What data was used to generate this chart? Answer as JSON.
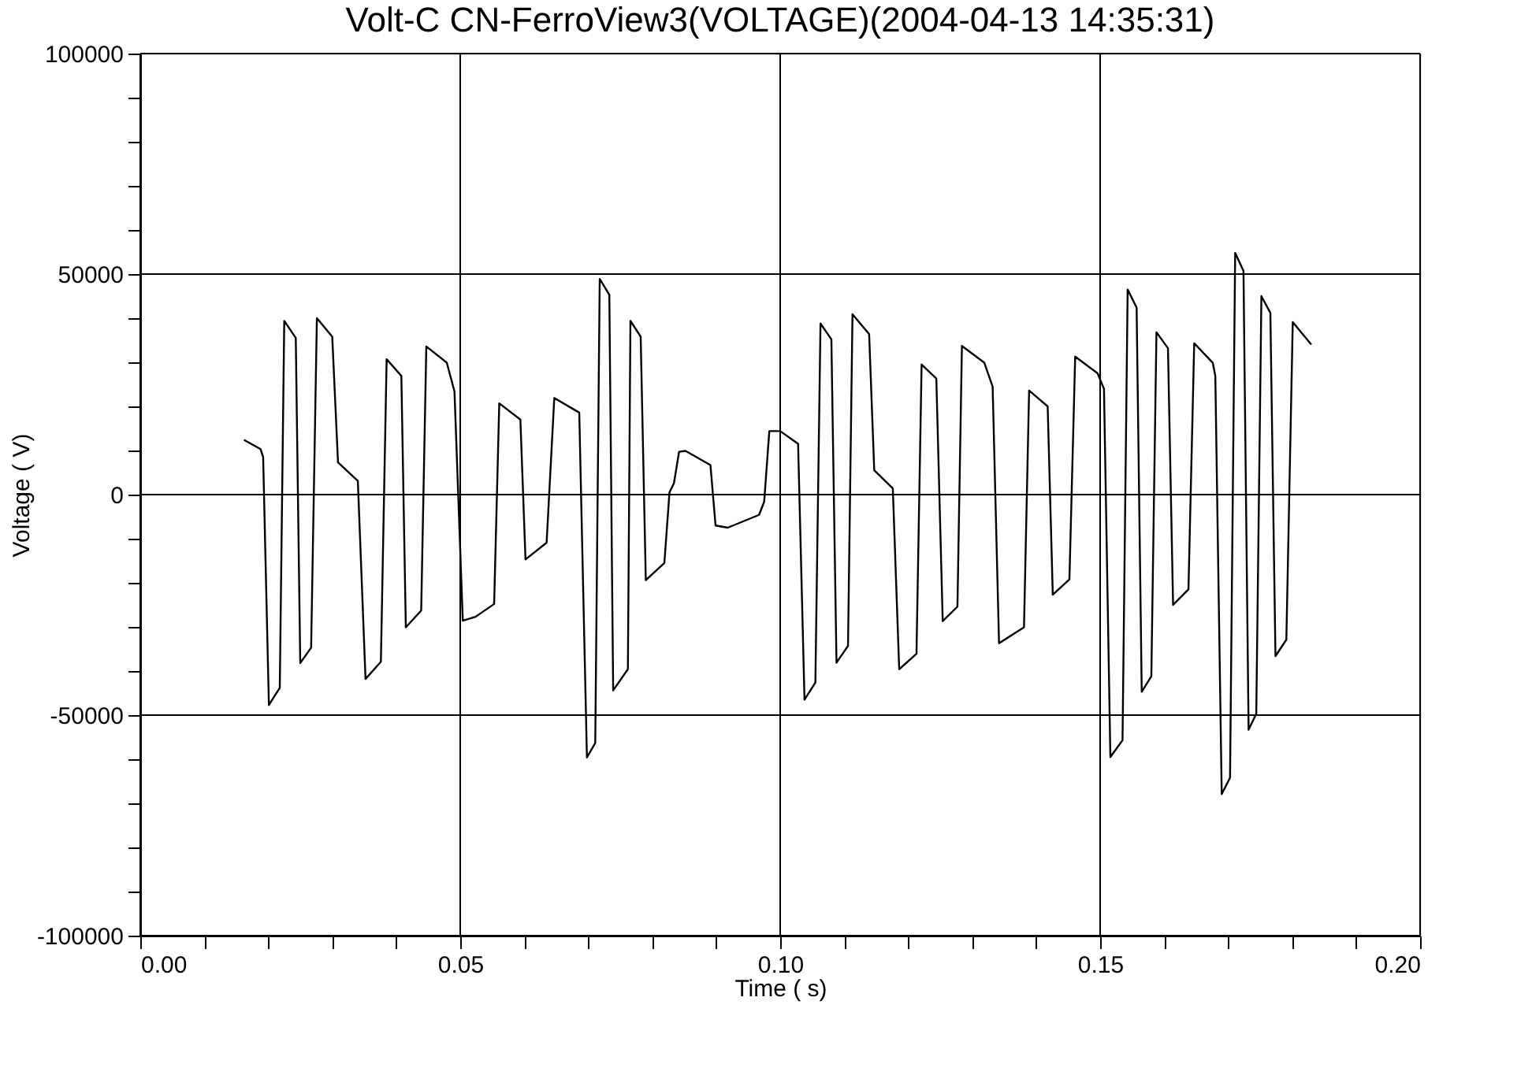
{
  "chart_data": {
    "type": "line",
    "title": "Volt-C CN-FerroView3(VOLTAGE)(2004-04-13 14:35:31)",
    "xlabel": "Time ( s)",
    "ylabel": "Voltage ( V)",
    "xlim": [
      0,
      0.2
    ],
    "ylim": [
      -100000,
      100000
    ],
    "xticks": [
      {
        "value": 0,
        "label": "0.00"
      },
      {
        "value": 0.01,
        "label": null
      },
      {
        "value": 0.02,
        "label": null
      },
      {
        "value": 0.03,
        "label": null
      },
      {
        "value": 0.04,
        "label": null
      },
      {
        "value": 0.05,
        "label": "0.05"
      },
      {
        "value": 0.06,
        "label": null
      },
      {
        "value": 0.07,
        "label": null
      },
      {
        "value": 0.08,
        "label": null
      },
      {
        "value": 0.09,
        "label": null
      },
      {
        "value": 0.1,
        "label": "0.10"
      },
      {
        "value": 0.11,
        "label": null
      },
      {
        "value": 0.12,
        "label": null
      },
      {
        "value": 0.13,
        "label": null
      },
      {
        "value": 0.14,
        "label": null
      },
      {
        "value": 0.15,
        "label": "0.15"
      },
      {
        "value": 0.16,
        "label": null
      },
      {
        "value": 0.17,
        "label": null
      },
      {
        "value": 0.18,
        "label": null
      },
      {
        "value": 0.19,
        "label": null
      },
      {
        "value": 0.2,
        "label": "0.20"
      }
    ],
    "yticks": [
      -100000,
      {
        "value": -90000,
        "label": null
      },
      {
        "value": -80000,
        "label": null
      },
      {
        "value": -70000,
        "label": null
      },
      {
        "value": -60000,
        "label": null
      },
      -50000,
      {
        "value": -40000,
        "label": null
      },
      {
        "value": -30000,
        "label": null
      },
      {
        "value": -20000,
        "label": null
      },
      {
        "value": -10000,
        "label": null
      },
      0,
      {
        "value": 10000,
        "label": null
      },
      {
        "value": 20000,
        "label": null
      },
      {
        "value": 30000,
        "label": null
      },
      {
        "value": 40000,
        "label": null
      },
      50000,
      {
        "value": 60000,
        "label": null
      },
      {
        "value": 70000,
        "label": null
      },
      {
        "value": 80000,
        "label": null
      },
      {
        "value": 90000,
        "label": null
      },
      100000
    ],
    "grid": true,
    "line_style": "solid",
    "marker": "none",
    "x": [
      0.0162,
      0.0188,
      0.0192,
      0.0201,
      0.0218,
      0.0225,
      0.0243,
      0.025,
      0.0267,
      0.0276,
      0.03,
      0.0309,
      0.034,
      0.0352,
      0.0376,
      0.0385,
      0.0408,
      0.0415,
      0.0439,
      0.0447,
      0.0479,
      0.0491,
      0.0504,
      0.0524,
      0.0553,
      0.0561,
      0.0594,
      0.0602,
      0.0635,
      0.0647,
      0.0686,
      0.0698,
      0.0711,
      0.0718,
      0.0733,
      0.0739,
      0.0762,
      0.0766,
      0.0782,
      0.079,
      0.0819,
      0.0827,
      0.0834,
      0.0842,
      0.0852,
      0.0891,
      0.0899,
      0.0918,
      0.0967,
      0.0975,
      0.0983,
      0.1,
      0.1028,
      0.1038,
      0.1055,
      0.1063,
      0.108,
      0.1088,
      0.1106,
      0.1113,
      0.1139,
      0.1147,
      0.1176,
      0.1186,
      0.1213,
      0.1221,
      0.1244,
      0.1254,
      0.1277,
      0.1284,
      0.1319,
      0.1332,
      0.1342,
      0.1381,
      0.1389,
      0.1418,
      0.1426,
      0.1452,
      0.1461,
      0.1496,
      0.1506,
      0.1516,
      0.1535,
      0.1543,
      0.1557,
      0.1565,
      0.158,
      0.1588,
      0.1606,
      0.1614,
      0.1638,
      0.1647,
      0.1676,
      0.168,
      0.169,
      0.1703,
      0.1711,
      0.1724,
      0.1732,
      0.1744,
      0.1752,
      0.1766,
      0.1774,
      0.1791,
      0.1801,
      0.183
    ],
    "series": [
      {
        "color": "#000000",
        "values": [
          12400,
          10300,
          8500,
          -47700,
          -43800,
          39400,
          35500,
          -38200,
          -34700,
          40000,
          35800,
          7300,
          3100,
          -41800,
          -37900,
          30700,
          26900,
          -30100,
          -26300,
          33600,
          29900,
          23400,
          -28600,
          -27700,
          -24800,
          20700,
          17000,
          -14700,
          -10900,
          21900,
          18600,
          -59600,
          -56300,
          48900,
          45300,
          -44400,
          -39600,
          39400,
          35800,
          -19400,
          -15500,
          500,
          2600,
          9700,
          9900,
          6700,
          -7000,
          -7500,
          -4600,
          -1600,
          14400,
          14400,
          11500,
          -46500,
          -42600,
          38800,
          35200,
          -38100,
          -34300,
          40900,
          36400,
          5500,
          1400,
          -39600,
          -36100,
          29500,
          26300,
          -28700,
          -25400,
          33700,
          29900,
          24500,
          -33700,
          -30100,
          23600,
          20000,
          -22700,
          -19200,
          31300,
          27500,
          24000,
          -59500,
          -55700,
          46500,
          42400,
          -44700,
          -41200,
          36800,
          33200,
          -25000,
          -21500,
          34300,
          29900,
          26900,
          -67900,
          -64200,
          54800,
          50700,
          -53300,
          -49700,
          45000,
          41200,
          -36600,
          -32900,
          39100,
          34000
        ]
      }
    ]
  }
}
